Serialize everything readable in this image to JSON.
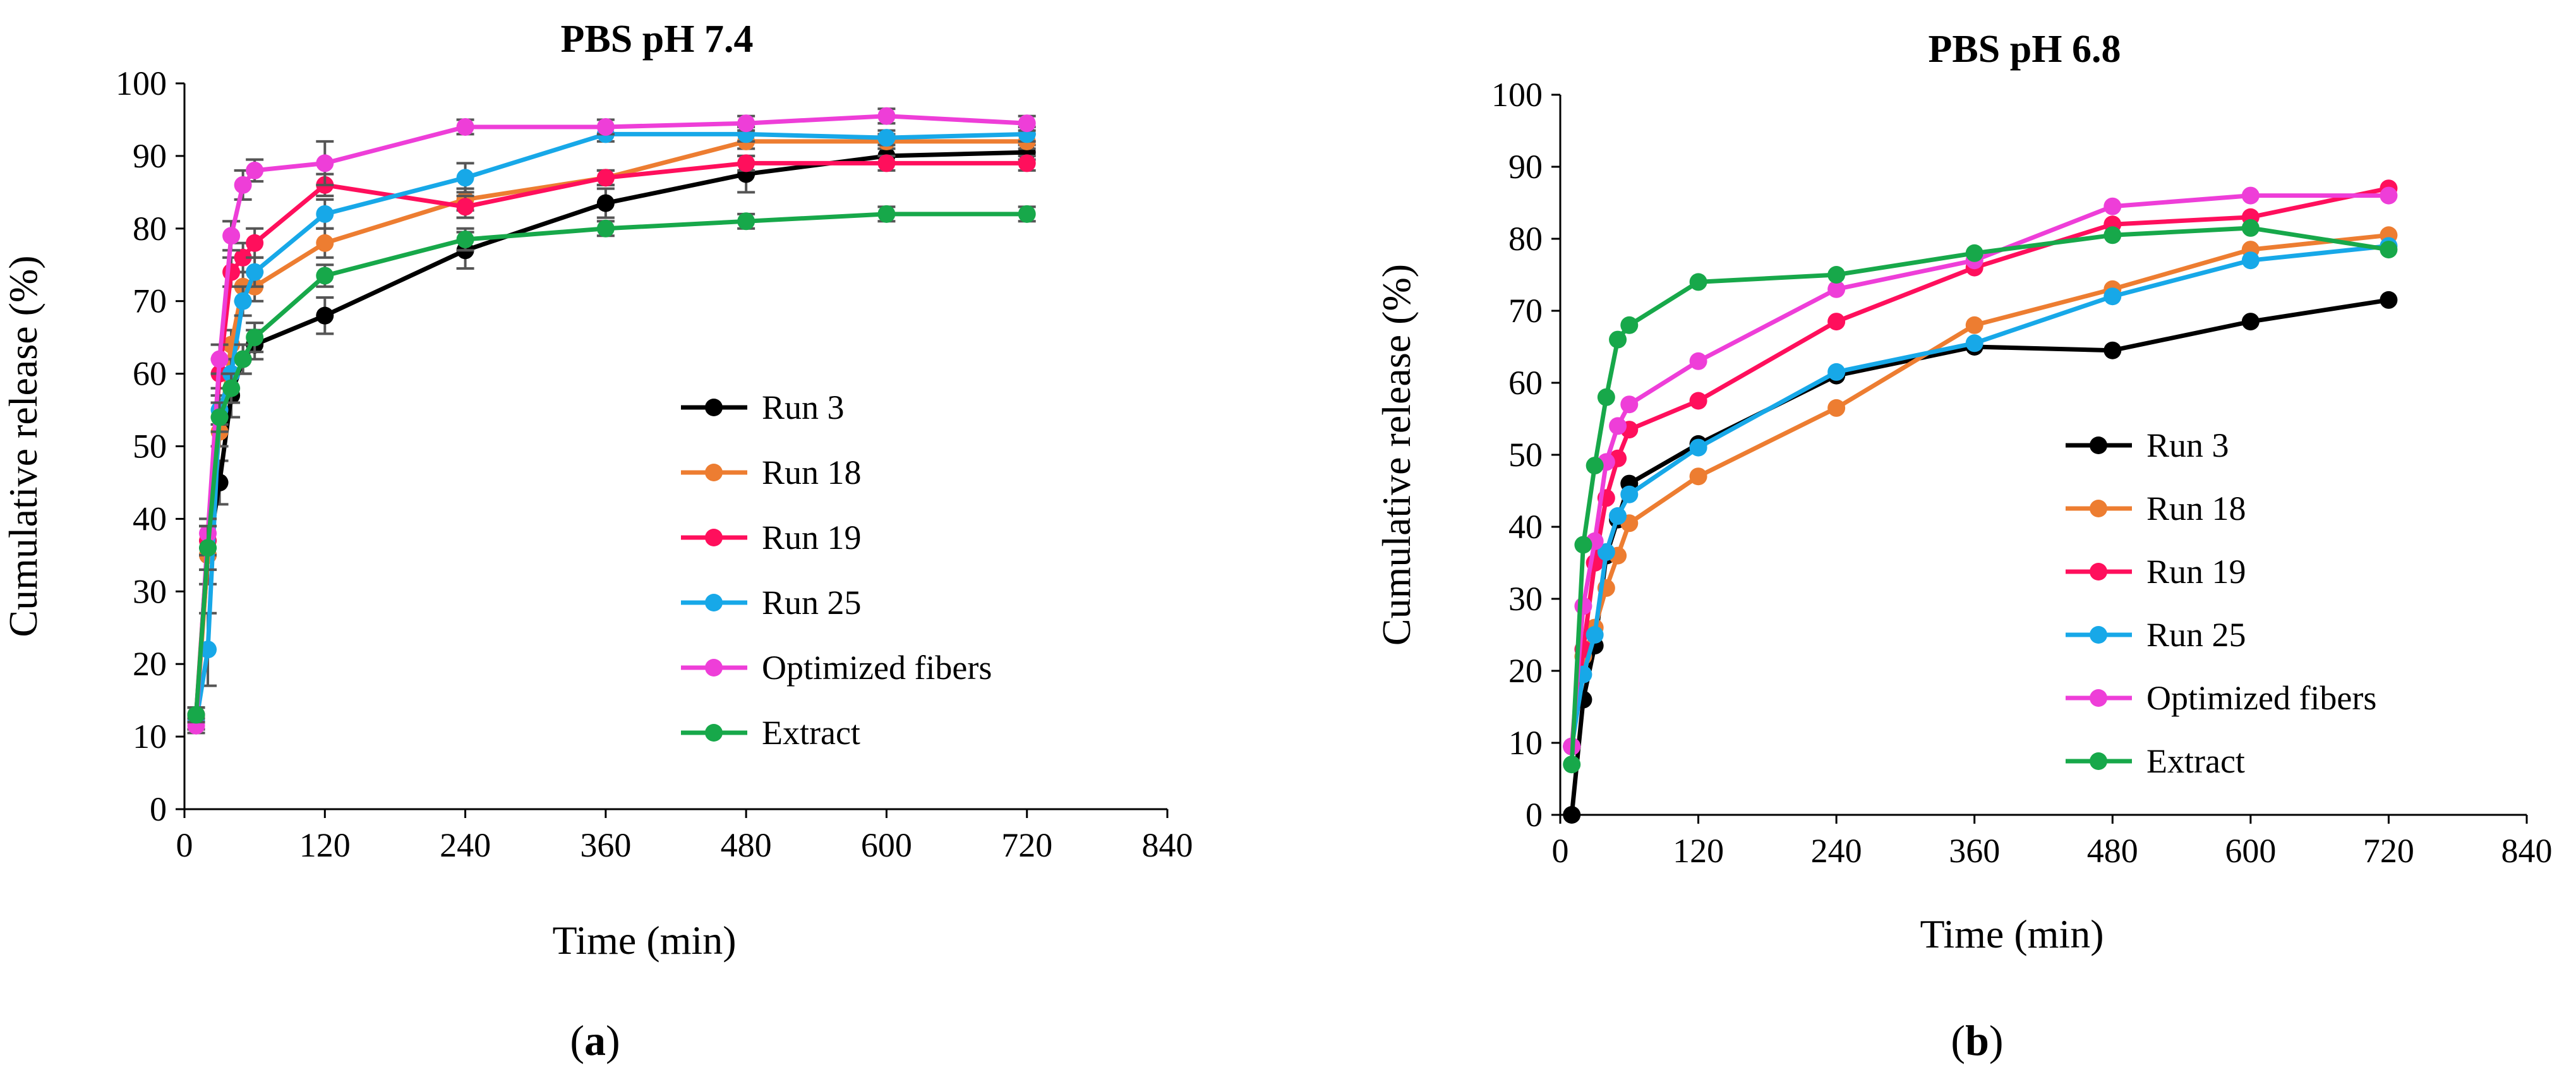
{
  "colors": {
    "Run 3": "#000000",
    "Run 18": "#ED7D31",
    "Run 19": "#FF0F5C",
    "Run 25": "#17A8E8",
    "Optimized fibers": "#EE3ED8",
    "Extract": "#17A84A",
    "error_bar": "#555555",
    "axis": "#000000"
  },
  "chart_data": [
    {
      "type": "line",
      "panel_label": "a",
      "title": "PBS pH 7.4",
      "xlabel": "Time (min)",
      "ylabel": "Cumulative release (%)",
      "xlim": [
        0,
        840
      ],
      "ylim": [
        0,
        100
      ],
      "xticks": [
        "0",
        "120",
        "240",
        "360",
        "480",
        "600",
        "720",
        "840"
      ],
      "yticks": [
        "0",
        "10",
        "20",
        "30",
        "40",
        "50",
        "60",
        "70",
        "80",
        "90",
        "100"
      ],
      "grid": false,
      "legend_position": "center-right",
      "x": [
        10,
        20,
        30,
        40,
        50,
        60,
        120,
        240,
        360,
        480,
        600,
        720
      ],
      "series": [
        {
          "name": "Run 3",
          "values": [
            13,
            35,
            45,
            57,
            62,
            64,
            68,
            77,
            83.5,
            87.5,
            90,
            90.5
          ],
          "err": [
            1,
            4,
            3,
            3,
            2,
            2,
            2.5,
            2.5,
            2,
            2.5,
            1,
            1
          ]
        },
        {
          "name": "Run 18",
          "values": [
            12,
            35,
            52,
            64,
            72,
            72,
            78,
            84,
            87,
            92,
            92,
            92
          ],
          "err": [
            1,
            2,
            2,
            2,
            2,
            2,
            2,
            1.5,
            1,
            1,
            1,
            1
          ]
        },
        {
          "name": "Run 19",
          "values": [
            13,
            37,
            60,
            74,
            76,
            78,
            86,
            83,
            87,
            89,
            89,
            89
          ],
          "err": [
            1,
            2,
            2,
            2,
            2,
            2,
            1.5,
            1.5,
            1,
            1,
            1,
            1
          ]
        },
        {
          "name": "Run 25",
          "values": [
            12,
            22,
            55,
            60,
            70,
            74,
            82,
            87,
            93,
            93,
            92.5,
            93
          ],
          "err": [
            1,
            5,
            2,
            2,
            2,
            2,
            2,
            2,
            1,
            1,
            1,
            1
          ]
        },
        {
          "name": "Optimized fibers",
          "values": [
            11.5,
            38,
            62,
            79,
            86,
            88,
            89,
            94,
            94,
            94.5,
            95.5,
            94.5
          ],
          "err": [
            1,
            2,
            2,
            2,
            2,
            1.5,
            3,
            1,
            1,
            1,
            1,
            1
          ]
        },
        {
          "name": "Extract",
          "values": [
            13,
            36,
            54,
            58,
            62,
            65,
            73.5,
            78.5,
            80,
            81,
            82,
            82
          ],
          "err": [
            1,
            3,
            2,
            2,
            2,
            2,
            1.5,
            1.5,
            1,
            1,
            1,
            1
          ]
        }
      ]
    },
    {
      "type": "line",
      "panel_label": "b",
      "title": "PBS pH 6.8",
      "xlabel": "Time (min)",
      "ylabel": "Cumulative release (%)",
      "xlim": [
        0,
        840
      ],
      "ylim": [
        0,
        100
      ],
      "xticks": [
        "0",
        "120",
        "240",
        "360",
        "480",
        "600",
        "720",
        "840"
      ],
      "yticks": [
        "0",
        "10",
        "20",
        "30",
        "40",
        "50",
        "60",
        "70",
        "80",
        "90",
        "100"
      ],
      "grid": false,
      "legend_position": "center-right",
      "x": [
        10,
        20,
        30,
        40,
        50,
        60,
        120,
        240,
        360,
        480,
        600,
        720
      ],
      "series": [
        {
          "name": "Run 3",
          "values": [
            0,
            16,
            23.5,
            36,
            41,
            46,
            51.5,
            61,
            65,
            64.5,
            68.5,
            71.5
          ]
        },
        {
          "name": "Run 18",
          "values": [
            9.5,
            22,
            26,
            31.5,
            36,
            40.5,
            47,
            56.5,
            68,
            73,
            78.5,
            80.5
          ]
        },
        {
          "name": "Run 19",
          "values": [
            9.5,
            23,
            35,
            44,
            49.5,
            53.5,
            57.5,
            68.5,
            76,
            82,
            83,
            87
          ]
        },
        {
          "name": "Run 25",
          "values": [
            9.5,
            19.5,
            25,
            36.5,
            41.5,
            44.5,
            51,
            61.5,
            65.5,
            72,
            77,
            79
          ]
        },
        {
          "name": "Optimized fibers",
          "values": [
            9.5,
            29,
            38,
            49,
            54,
            57,
            63,
            73,
            77,
            84.5,
            86,
            86
          ]
        },
        {
          "name": "Extract",
          "values": [
            7,
            37.5,
            48.5,
            58,
            66,
            68,
            74,
            75,
            78,
            80.5,
            81.5,
            78.5
          ]
        }
      ]
    }
  ]
}
